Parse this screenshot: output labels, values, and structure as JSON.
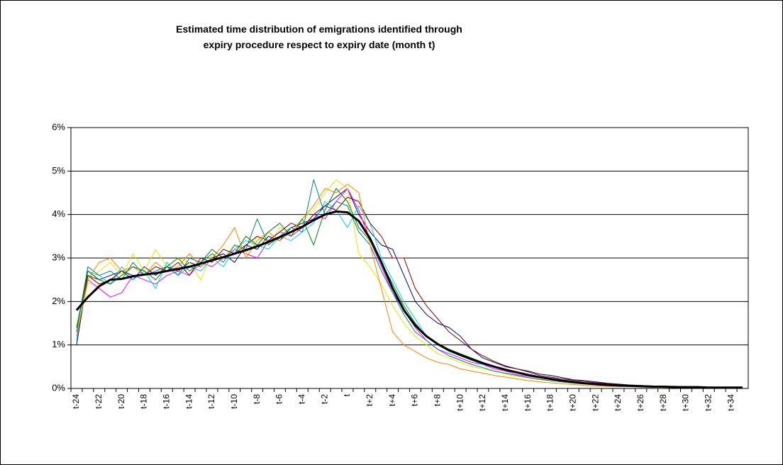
{
  "chart_data": {
    "type": "line",
    "title": [
      "Estimated time distribution of emigrations identified through",
      "expiry procedure respect to expiry date (month t)"
    ],
    "categories": [
      "t-24",
      null,
      "t-22",
      null,
      "t-20",
      null,
      "t-18",
      null,
      "t-16",
      null,
      "t-14",
      null,
      "t-12",
      null,
      "t-10",
      null,
      "t-8",
      null,
      "t-6",
      null,
      "t-4",
      null,
      "t-2",
      null,
      "t",
      null,
      "t+2",
      null,
      "t+4",
      null,
      "t+6",
      null,
      "t+8",
      null,
      "t+10",
      null,
      "t+12",
      null,
      "t+14",
      null,
      "t+16",
      null,
      "t+18",
      null,
      "t+20",
      null,
      "t+22",
      null,
      "t+24",
      null,
      "t+26",
      null,
      "t+28",
      null,
      "t+30",
      null,
      "t+32",
      null,
      "t+34",
      null
    ],
    "ylim": [
      0,
      6
    ],
    "yticks": [
      {
        "value": 0,
        "label": "0%"
      },
      {
        "value": 1,
        "label": "1%"
      },
      {
        "value": 2,
        "label": "2%"
      },
      {
        "value": 3,
        "label": "3%"
      },
      {
        "value": 4,
        "label": "4%"
      },
      {
        "value": 5,
        "label": "5%"
      },
      {
        "value": 6,
        "label": "6%"
      }
    ],
    "grid": true,
    "series": [
      {
        "color": "#000080",
        "linewidth": 1,
        "values": [
          1.0,
          2.6,
          2.5,
          2.6,
          2.7,
          2.5,
          2.8,
          2.6,
          2.8,
          2.7,
          2.9,
          2.8,
          3.0,
          3.1,
          2.9,
          3.3,
          3.2,
          3.5,
          3.4,
          3.7,
          3.8,
          3.9,
          4.2,
          4.4,
          4.6,
          4.0,
          3.6,
          3.3,
          3.2,
          2.6,
          2.0,
          1.7,
          1.5,
          1.4,
          1.2,
          0.9,
          0.7,
          0.6,
          0.5,
          0.45,
          0.4,
          0.33,
          0.3,
          0.25,
          0.2,
          0.18,
          0.15,
          0.12,
          0.1,
          0.08,
          0.07,
          0.06,
          0.05,
          0.05,
          0.04,
          0.04,
          0.03,
          0.03,
          0.02,
          0.02
        ]
      },
      {
        "color": "#ff00ff",
        "linewidth": 1,
        "values": [
          1.2,
          2.5,
          2.3,
          2.1,
          2.2,
          2.6,
          2.5,
          2.4,
          2.6,
          2.7,
          2.6,
          2.9,
          2.8,
          3.0,
          3.2,
          3.1,
          3.0,
          3.4,
          3.6,
          3.5,
          3.7,
          4.0,
          3.9,
          4.3,
          4.6,
          4.1,
          3.4,
          2.8,
          2.2,
          1.8,
          1.4,
          1.1,
          0.9,
          0.8,
          0.7,
          0.6,
          0.55,
          0.45,
          0.4,
          0.32,
          0.28,
          0.24,
          0.2,
          0.17,
          0.14,
          0.11,
          0.09,
          0.08,
          0.06,
          0.05,
          0.04,
          0.04,
          0.03,
          0.03,
          0.02,
          0.02,
          0.02,
          0.01,
          0.01,
          0.01
        ]
      },
      {
        "color": "#e6e600",
        "linewidth": 1,
        "values": [
          1.3,
          2.4,
          2.7,
          2.9,
          2.6,
          3.1,
          2.7,
          3.2,
          2.8,
          3.0,
          2.9,
          2.5,
          3.1,
          3.0,
          3.3,
          3.1,
          3.5,
          3.3,
          3.7,
          3.6,
          3.9,
          4.1,
          4.5,
          4.8,
          4.6,
          3.1,
          2.8,
          2.4,
          1.9,
          1.5,
          1.2,
          1.0,
          0.8,
          0.7,
          0.6,
          0.5,
          0.45,
          0.4,
          0.33,
          0.28,
          0.24,
          0.2,
          0.18,
          0.15,
          0.12,
          0.1,
          0.09,
          0.07,
          0.06,
          0.05,
          0.04,
          0.04,
          0.03,
          0.03,
          0.02,
          0.02,
          0.02,
          0.02,
          0.01,
          0.01
        ]
      },
      {
        "color": "#00ccff",
        "linewidth": 1,
        "values": [
          1.1,
          2.7,
          2.6,
          2.4,
          2.8,
          2.5,
          2.7,
          2.3,
          2.9,
          2.6,
          2.8,
          2.7,
          3.0,
          2.8,
          3.2,
          3.4,
          3.3,
          3.2,
          3.5,
          3.4,
          3.6,
          3.8,
          4.3,
          4.1,
          3.7,
          4.2,
          3.8,
          3.0,
          2.5,
          2.0,
          1.6,
          1.2,
          1.0,
          0.85,
          0.75,
          0.65,
          0.55,
          0.5,
          0.42,
          0.36,
          0.3,
          0.26,
          0.22,
          0.19,
          0.15,
          0.13,
          0.1,
          0.09,
          0.07,
          0.06,
          0.05,
          0.04,
          0.04,
          0.03,
          0.03,
          0.02,
          0.02,
          0.02,
          0.02,
          0.01
        ]
      },
      {
        "color": "#800000",
        "linewidth": 1,
        "values": [
          1.4,
          2.6,
          2.4,
          2.5,
          2.7,
          2.6,
          2.6,
          2.8,
          2.7,
          2.9,
          2.6,
          3.0,
          2.9,
          3.2,
          3.1,
          3.3,
          3.5,
          3.4,
          3.6,
          3.8,
          3.7,
          4.0,
          4.2,
          4.1,
          4.4,
          4.3,
          3.8,
          3.5,
          3.0,
          3.0,
          2.3,
          1.9,
          1.6,
          1.3,
          1.1,
          0.9,
          0.75,
          0.62,
          0.52,
          0.45,
          0.38,
          0.3,
          0.26,
          0.22,
          0.19,
          0.16,
          0.13,
          0.11,
          0.09,
          0.07,
          0.06,
          0.05,
          0.04,
          0.04,
          0.03,
          0.03,
          0.02,
          0.02,
          0.02,
          0.02
        ]
      },
      {
        "color": "#008080",
        "linewidth": 1,
        "values": [
          1.3,
          2.8,
          2.6,
          2.7,
          2.5,
          2.9,
          2.6,
          2.7,
          2.8,
          2.6,
          3.0,
          2.9,
          3.1,
          2.9,
          3.3,
          3.2,
          3.9,
          3.3,
          3.5,
          3.7,
          3.6,
          4.8,
          4.0,
          4.3,
          4.2,
          3.6,
          3.3,
          2.7,
          2.2,
          1.7,
          1.3,
          1.1,
          0.9,
          0.75,
          0.65,
          0.55,
          0.48,
          0.4,
          0.35,
          0.3,
          0.25,
          0.21,
          0.18,
          0.15,
          0.12,
          0.1,
          0.08,
          0.07,
          0.06,
          0.05,
          0.04,
          0.03,
          0.03,
          0.03,
          0.02,
          0.02,
          0.02,
          0.01,
          0.01,
          0.01
        ]
      },
      {
        "color": "#ff8000",
        "linewidth": 1,
        "values": [
          1.2,
          2.5,
          2.9,
          3.0,
          2.7,
          2.8,
          2.6,
          2.9,
          2.7,
          2.8,
          3.1,
          2.8,
          3.0,
          3.3,
          3.7,
          3.0,
          3.4,
          3.6,
          3.4,
          3.6,
          3.9,
          4.2,
          4.6,
          4.5,
          4.7,
          4.5,
          3.3,
          2.3,
          1.3,
          1.0,
          0.85,
          0.7,
          0.6,
          0.55,
          0.45,
          0.4,
          0.35,
          0.3,
          0.26,
          0.22,
          0.18,
          0.15,
          0.13,
          0.11,
          0.09,
          0.07,
          0.06,
          0.05,
          0.04,
          0.04,
          0.03,
          0.03,
          0.02,
          0.02,
          0.02,
          0.02,
          0.01,
          0.01,
          0.01,
          0.01
        ]
      },
      {
        "color": "#008000",
        "linewidth": 1,
        "values": [
          1.4,
          2.7,
          2.5,
          2.4,
          2.6,
          2.8,
          2.7,
          2.5,
          2.8,
          3.0,
          2.7,
          2.9,
          3.2,
          3.0,
          3.1,
          3.5,
          3.3,
          3.6,
          3.8,
          3.5,
          3.9,
          3.3,
          4.1,
          4.6,
          4.3,
          3.7,
          3.4,
          2.9,
          2.4,
          1.9,
          1.5,
          1.2,
          1.0,
          0.9,
          0.8,
          0.7,
          0.6,
          0.5,
          0.43,
          0.37,
          0.32,
          0.27,
          0.23,
          0.19,
          0.16,
          0.13,
          0.11,
          0.09,
          0.07,
          0.06,
          0.05,
          0.04,
          0.04,
          0.03,
          0.03,
          0.02,
          0.02,
          0.02,
          0.01,
          0.01
        ]
      },
      {
        "color": "#000000",
        "linewidth": 3,
        "values": [
          1.8,
          2.1,
          2.35,
          2.5,
          2.52,
          2.58,
          2.62,
          2.65,
          2.7,
          2.75,
          2.8,
          2.87,
          2.95,
          3.02,
          3.1,
          3.18,
          3.27,
          3.37,
          3.48,
          3.6,
          3.72,
          3.87,
          4.0,
          4.07,
          4.05,
          3.85,
          3.45,
          2.9,
          2.3,
          1.8,
          1.45,
          1.2,
          1.02,
          0.88,
          0.77,
          0.67,
          0.58,
          0.5,
          0.43,
          0.37,
          0.31,
          0.26,
          0.22,
          0.18,
          0.15,
          0.12,
          0.1,
          0.08,
          0.07,
          0.06,
          0.05,
          0.04,
          0.04,
          0.03,
          0.03,
          0.03,
          0.02,
          0.02,
          0.02,
          0.02
        ]
      }
    ]
  }
}
